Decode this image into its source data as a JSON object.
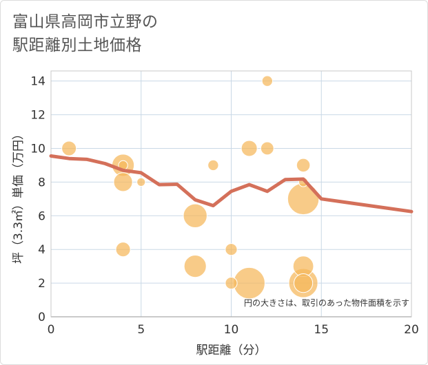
{
  "title": "富山県高岡市立野の\n駅距離別土地価格",
  "chart_data": {
    "type": "scatter",
    "xlabel": "駅距離（分）",
    "ylabel": "坪（3.3㎡）単価（万円）",
    "xlim": [
      0,
      20
    ],
    "ylim": [
      0,
      14.6
    ],
    "xticks": [
      0,
      5,
      10,
      15,
      20
    ],
    "yticks": [
      0,
      2,
      4,
      6,
      8,
      10,
      12,
      14
    ],
    "grid": true,
    "note": "円の大きさは、取引のあった物件面積を示す",
    "bubble_color": "#f5b75a",
    "line_color": "#d4705a",
    "points": [
      {
        "x": 1,
        "y": 10,
        "size": 1.5
      },
      {
        "x": 4,
        "y": 9,
        "size": 3.5
      },
      {
        "x": 4,
        "y": 9,
        "size": 0.6
      },
      {
        "x": 4,
        "y": 8,
        "size": 2.5
      },
      {
        "x": 4,
        "y": 4,
        "size": 1.5
      },
      {
        "x": 5,
        "y": 8,
        "size": 0.5
      },
      {
        "x": 8,
        "y": 6,
        "size": 4
      },
      {
        "x": 8,
        "y": 3,
        "size": 3.5
      },
      {
        "x": 9,
        "y": 9,
        "size": 0.8
      },
      {
        "x": 10,
        "y": 4,
        "size": 1
      },
      {
        "x": 10,
        "y": 2,
        "size": 1
      },
      {
        "x": 11,
        "y": 10,
        "size": 1.8
      },
      {
        "x": 11,
        "y": 2,
        "size": 7
      },
      {
        "x": 12,
        "y": 14,
        "size": 0.8
      },
      {
        "x": 12,
        "y": 10,
        "size": 1.2
      },
      {
        "x": 14,
        "y": 9,
        "size": 1.3
      },
      {
        "x": 14,
        "y": 8,
        "size": 0.6
      },
      {
        "x": 14,
        "y": 7,
        "size": 7
      },
      {
        "x": 14,
        "y": 3,
        "size": 3
      },
      {
        "x": 14,
        "y": 2,
        "size": 6
      },
      {
        "x": 14,
        "y": 2,
        "size": 2.5
      }
    ],
    "trend": {
      "x": [
        0,
        1,
        2,
        3,
        4,
        5,
        6,
        7,
        8,
        9,
        10,
        11,
        12,
        13,
        14,
        15,
        20
      ],
      "y": [
        9.55,
        9.4,
        9.35,
        9.1,
        8.7,
        8.55,
        7.85,
        7.87,
        6.95,
        6.6,
        7.45,
        7.85,
        7.45,
        8.15,
        8.18,
        7.0,
        6.25
      ]
    }
  }
}
